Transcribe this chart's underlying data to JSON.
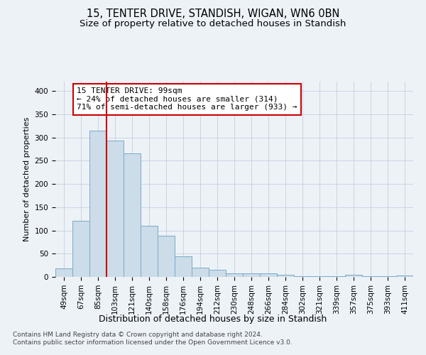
{
  "title1": "15, TENTER DRIVE, STANDISH, WIGAN, WN6 0BN",
  "title2": "Size of property relative to detached houses in Standish",
  "xlabel": "Distribution of detached houses by size in Standish",
  "ylabel": "Number of detached properties",
  "categories": [
    "49sqm",
    "67sqm",
    "85sqm",
    "103sqm",
    "121sqm",
    "140sqm",
    "158sqm",
    "176sqm",
    "194sqm",
    "212sqm",
    "230sqm",
    "248sqm",
    "266sqm",
    "284sqm",
    "302sqm",
    "321sqm",
    "339sqm",
    "357sqm",
    "375sqm",
    "393sqm",
    "411sqm"
  ],
  "values": [
    18,
    120,
    315,
    293,
    266,
    110,
    88,
    45,
    20,
    15,
    8,
    8,
    7,
    5,
    2,
    2,
    2,
    4,
    2,
    2,
    3
  ],
  "bar_color": "#ccdce8",
  "bar_edge_color": "#7aaac8",
  "vline_color": "#cc0000",
  "vline_x_index": 2,
  "annotation_text": "15 TENTER DRIVE: 99sqm\n← 24% of detached houses are smaller (314)\n71% of semi-detached houses are larger (933) →",
  "annotation_box_color": "#ffffff",
  "annotation_box_edge_color": "#cc0000",
  "ylim": [
    0,
    420
  ],
  "yticks": [
    0,
    50,
    100,
    150,
    200,
    250,
    300,
    350,
    400
  ],
  "footer_text": "Contains HM Land Registry data © Crown copyright and database right 2024.\nContains public sector information licensed under the Open Government Licence v3.0.",
  "bg_color": "#edf2f7",
  "plot_bg_color": "#edf2f7",
  "grid_color": "#c5cfe0",
  "title1_fontsize": 10.5,
  "title2_fontsize": 9.5,
  "xlabel_fontsize": 9,
  "ylabel_fontsize": 8,
  "tick_fontsize": 7.5,
  "annotation_fontsize": 8,
  "footer_fontsize": 6.5
}
